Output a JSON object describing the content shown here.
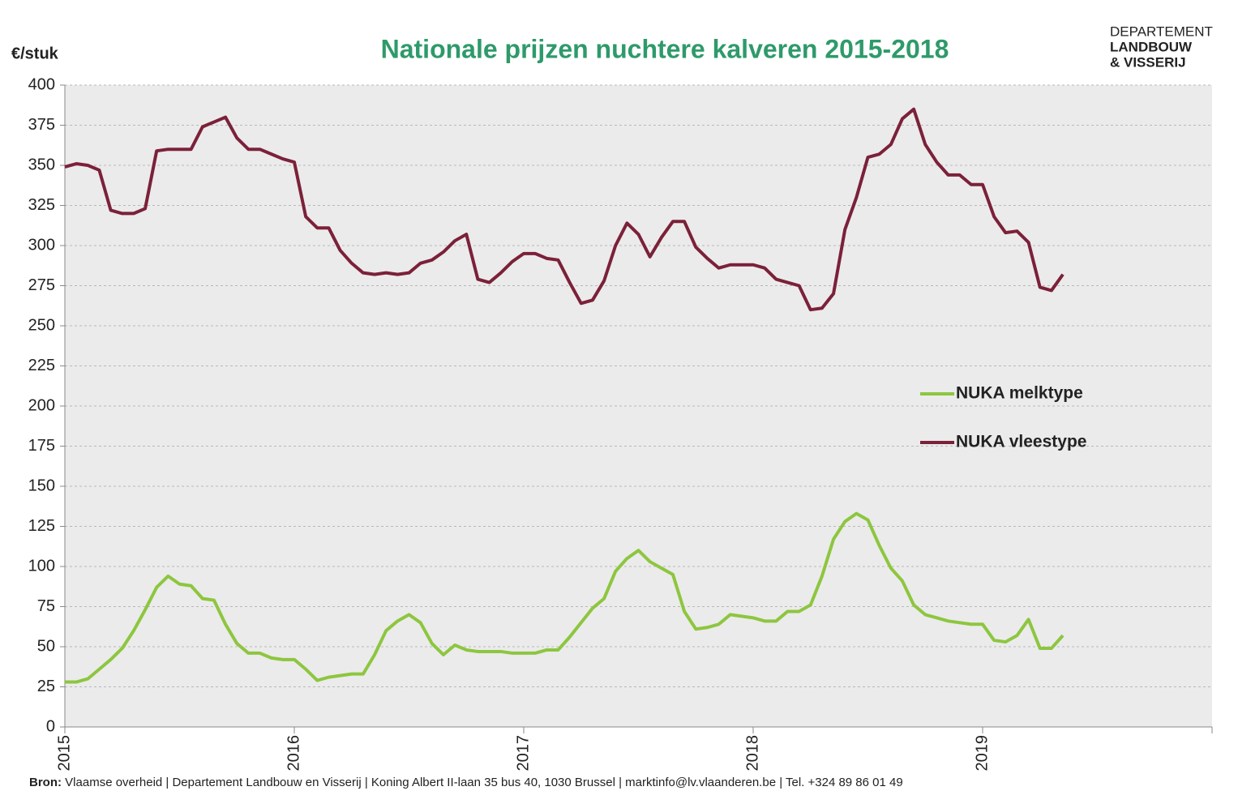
{
  "chart_data": {
    "type": "line",
    "title": "Nationale prijzen nuchtere kalveren 2015-2018",
    "y_label": "€/stuk",
    "logo": [
      "DEPARTEMENT",
      "LANDBOUW",
      "& VISSERIJ"
    ],
    "source_label": "Bron:",
    "source": "Vlaamse overheid | Departement Landbouw en Visserij | Koning Albert II-laan 35 bus 40, 1030 Brussel | marktinfo@lv.vlaanderen.be | Tel. +324 89 86 01 49",
    "x": [
      2015,
      2015.05,
      2015.1,
      2015.15,
      2015.2,
      2015.25,
      2015.3,
      2015.35,
      2015.4,
      2015.45,
      2015.5,
      2015.55,
      2015.6,
      2015.65,
      2015.7,
      2015.75,
      2015.8,
      2015.85,
      2015.9,
      2015.95,
      2016,
      2016.05,
      2016.1,
      2016.15,
      2016.2,
      2016.25,
      2016.3,
      2016.35,
      2016.4,
      2016.45,
      2016.5,
      2016.55,
      2016.6,
      2016.65,
      2016.7,
      2016.75,
      2016.8,
      2016.85,
      2016.9,
      2016.95,
      2017,
      2017.05,
      2017.1,
      2017.15,
      2017.2,
      2017.25,
      2017.3,
      2017.35,
      2017.4,
      2017.45,
      2017.5,
      2017.55,
      2017.6,
      2017.65,
      2017.7,
      2017.75,
      2017.8,
      2017.85,
      2017.9,
      2017.95,
      2018,
      2018.05,
      2018.1,
      2018.15,
      2018.2,
      2018.25,
      2018.3,
      2018.35,
      2018.4,
      2018.45,
      2018.5,
      2018.55,
      2018.6,
      2018.65,
      2018.7,
      2018.75,
      2018.8,
      2018.85,
      2018.9,
      2018.95,
      2019,
      2019.05,
      2019.1,
      2019.15,
      2019.2,
      2019.25,
      2019.3,
      2019.35
    ],
    "series": [
      {
        "name": "NUKA melktype",
        "color": "#8dc63f",
        "values": [
          28,
          28,
          30,
          36,
          42,
          49,
          60,
          73,
          87,
          94,
          89,
          88,
          80,
          79,
          64,
          52,
          46,
          46,
          43,
          42,
          42,
          36,
          29,
          31,
          32,
          33,
          33,
          45,
          60,
          66,
          70,
          65,
          52,
          45,
          51,
          48,
          47,
          47,
          47,
          46,
          46,
          46,
          48,
          48,
          56,
          65,
          74,
          80,
          97,
          105,
          110,
          103,
          99,
          95,
          72,
          61,
          62,
          64,
          70,
          69,
          68,
          66,
          66,
          72,
          72,
          76,
          94,
          117,
          128,
          133,
          129,
          113,
          99,
          91,
          76,
          70,
          68,
          66,
          65,
          64,
          64,
          54,
          53,
          57,
          67,
          49,
          49,
          57
        ]
      },
      {
        "name": "NUKA vleestype",
        "color": "#7b2139",
        "values": [
          349,
          351,
          350,
          347,
          322,
          320,
          320,
          323,
          359,
          360,
          360,
          360,
          374,
          377,
          380,
          367,
          360,
          360,
          357,
          354,
          352,
          318,
          311,
          311,
          297,
          289,
          283,
          282,
          283,
          282,
          283,
          289,
          291,
          296,
          303,
          307,
          279,
          277,
          283,
          290,
          295,
          295,
          292,
          291,
          277,
          264,
          266,
          278,
          300,
          314,
          307,
          293,
          305,
          315,
          315,
          299,
          292,
          286,
          288,
          288,
          288,
          286,
          279,
          277,
          275,
          260,
          261,
          270,
          310,
          330,
          355,
          357,
          363,
          379,
          385,
          363,
          352,
          344,
          344,
          338,
          338,
          318,
          308,
          309,
          302,
          274,
          272,
          282
        ]
      }
    ],
    "xlim": [
      2015,
      2020
    ],
    "xticks": [
      2015,
      2016,
      2017,
      2018,
      2019
    ],
    "ylim": [
      0,
      400
    ],
    "yticks": [
      0,
      25,
      50,
      75,
      100,
      125,
      150,
      175,
      200,
      225,
      250,
      275,
      300,
      325,
      350,
      375,
      400
    ],
    "grid": true,
    "legend": "right"
  }
}
